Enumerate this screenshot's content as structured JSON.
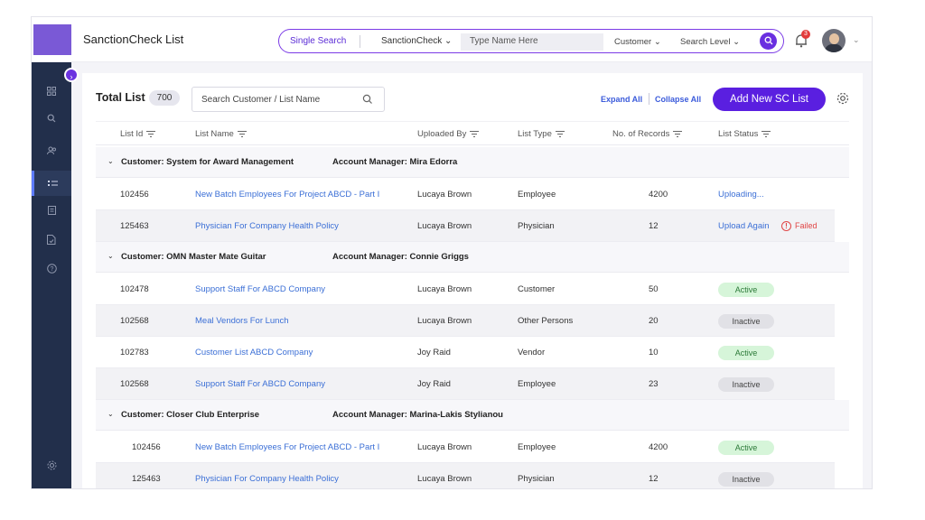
{
  "header": {
    "app_title": "SanctionCheck List",
    "search": {
      "mode": "Single Search",
      "scope": "SanctionCheck",
      "name_placeholder": "Type Name Here",
      "customer": "Customer",
      "level": "Search Level"
    },
    "notification_count": "3"
  },
  "sidebar": {
    "items": [
      "grid-icon",
      "search-icon",
      "users-icon",
      "list-icon",
      "document-icon",
      "file-check-icon",
      "help-icon",
      "settings-icon"
    ],
    "active_index": 3
  },
  "main": {
    "title": "Total List",
    "total_count": "700",
    "search_placeholder": "Search Customer / List Name",
    "expand_all": "Expand All",
    "collapse_all": "Collapse All",
    "add_button": "Add New SC List",
    "columns": [
      "List Id",
      "List Name",
      "Uploaded By",
      "List Type",
      "No. of Records",
      "List Status"
    ],
    "groups": [
      {
        "customer": "Customer: System for Award Management",
        "manager": "Account Manager: Mira Edorra",
        "rows": [
          {
            "id": "102456",
            "name": "New Batch Employees For Project ABCD - Part I",
            "by": "Lucaya Brown",
            "type": "Employee",
            "records": "4200",
            "status": "Uploading...",
            "status_kind": "text"
          },
          {
            "id": "125463",
            "name": "Physician For Company Health Policy",
            "by": "Lucaya Brown",
            "type": "Physician",
            "records": "12",
            "status": "Upload Again",
            "status_kind": "retry",
            "failed": "Failed"
          }
        ]
      },
      {
        "customer": "Customer: OMN Master Mate Guitar",
        "manager": "Account Manager: Connie Griggs",
        "rows": [
          {
            "id": "102478",
            "name": "Support Staff For ABCD Company",
            "by": "Lucaya Brown",
            "type": "Customer",
            "records": "50",
            "status": "Active",
            "status_kind": "active"
          },
          {
            "id": "102568",
            "name": "Meal Vendors For Lunch",
            "by": "Lucaya Brown",
            "type": "Other Persons",
            "records": "20",
            "status": "Inactive",
            "status_kind": "inactive"
          },
          {
            "id": "102783",
            "name": "Customer List ABCD Company",
            "by": "Joy Raid",
            "type": "Vendor",
            "records": "10",
            "status": "Active",
            "status_kind": "active"
          },
          {
            "id": "102568",
            "name": "Support Staff For ABCD Company",
            "by": "Joy Raid",
            "type": "Employee",
            "records": "23",
            "status": "Inactive",
            "status_kind": "inactive"
          }
        ]
      },
      {
        "customer": "Customer: Closer Club Enterprise",
        "manager": "Account Manager: Marina-Lakis Stylianou",
        "rows": [
          {
            "id": "102456",
            "name": "New Batch Employees For Project ABCD - Part I",
            "by": "Lucaya Brown",
            "type": "Employee",
            "records": "4200",
            "status": "Active",
            "status_kind": "active"
          },
          {
            "id": "125463",
            "name": "Physician For Company Health Policy",
            "by": "Lucaya Brown",
            "type": "Physician",
            "records": "12",
            "status": "Inactive",
            "status_kind": "inactive"
          }
        ]
      }
    ]
  },
  "colors": {
    "accent": "#5a1fe0",
    "link": "#3b6fd6",
    "sidebar": "#222f4b",
    "failed": "#e04545"
  }
}
